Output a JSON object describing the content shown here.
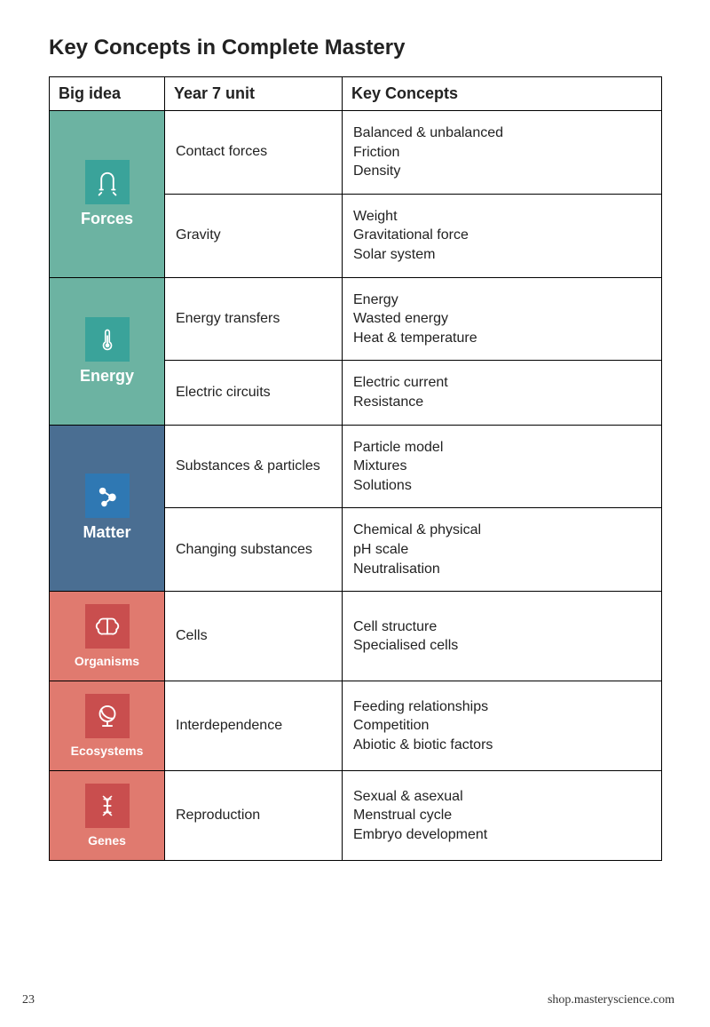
{
  "page": {
    "title": "Key Concepts in Complete Mastery",
    "pageNumber": "23",
    "footerRight": "shop.masteryscience.com",
    "colWidths": {
      "bigIdea": 130,
      "unit": 200,
      "concepts": 360
    },
    "headers": {
      "bigIdea": "Big idea",
      "unit": "Year 7 unit",
      "concepts": "Key Concepts"
    }
  },
  "colors": {
    "teal": "#6cb3a2",
    "tealIcon": "#3aa39a",
    "blue": "#4a6e92",
    "blueIcon": "#2f78b3",
    "coral": "#e07a6f",
    "coralIcon": "#c94e4e",
    "text": "#222222",
    "border": "#000000"
  },
  "bigIdeas": [
    {
      "id": "forces",
      "label": "Forces",
      "color": "teal",
      "iconBg": "tealIcon",
      "icon": "magnet",
      "labelSize": 18,
      "rows": [
        {
          "unit": "Contact forces",
          "concepts": [
            "Balanced & unbalanced",
            "Friction",
            "Density"
          ]
        },
        {
          "unit": "Gravity",
          "concepts": [
            "Weight",
            "Gravitational force",
            "Solar system"
          ]
        }
      ]
    },
    {
      "id": "energy",
      "label": "Energy",
      "color": "teal",
      "iconBg": "tealIcon",
      "icon": "thermometer",
      "labelSize": 18,
      "rows": [
        {
          "unit": "Energy transfers",
          "concepts": [
            "Energy",
            "Wasted energy",
            "Heat & temperature"
          ]
        },
        {
          "unit": "Electric circuits",
          "concepts": [
            "Electric current",
            "Resistance"
          ]
        }
      ]
    },
    {
      "id": "matter",
      "label": "Matter",
      "color": "blue",
      "iconBg": "blueIcon",
      "icon": "molecule",
      "labelSize": 18,
      "rows": [
        {
          "unit": "Substances & particles",
          "concepts": [
            "Particle model",
            "Mixtures",
            "Solutions"
          ]
        },
        {
          "unit": "Changing substances",
          "concepts": [
            "Chemical & physical",
            "pH scale",
            "Neutralisation"
          ]
        }
      ]
    },
    {
      "id": "organisms",
      "label": "Organisms",
      "color": "coral",
      "iconBg": "coralIcon",
      "icon": "brain",
      "labelSize": 14,
      "rows": [
        {
          "unit": "Cells",
          "concepts": [
            "Cell structure",
            "Specialised cells"
          ]
        }
      ]
    },
    {
      "id": "ecosystems",
      "label": "Ecosystems",
      "color": "coral",
      "iconBg": "coralIcon",
      "icon": "globe",
      "labelSize": 14,
      "rows": [
        {
          "unit": "Interdependence",
          "concepts": [
            "Feeding relationships",
            "Competition",
            "Abiotic & biotic factors"
          ]
        }
      ]
    },
    {
      "id": "genes",
      "label": "Genes",
      "color": "coral",
      "iconBg": "coralIcon",
      "icon": "dna",
      "labelSize": 14,
      "rows": [
        {
          "unit": "Reproduction",
          "concepts": [
            "Sexual & asexual",
            "Menstrual cycle",
            "Embryo development"
          ]
        }
      ]
    }
  ]
}
